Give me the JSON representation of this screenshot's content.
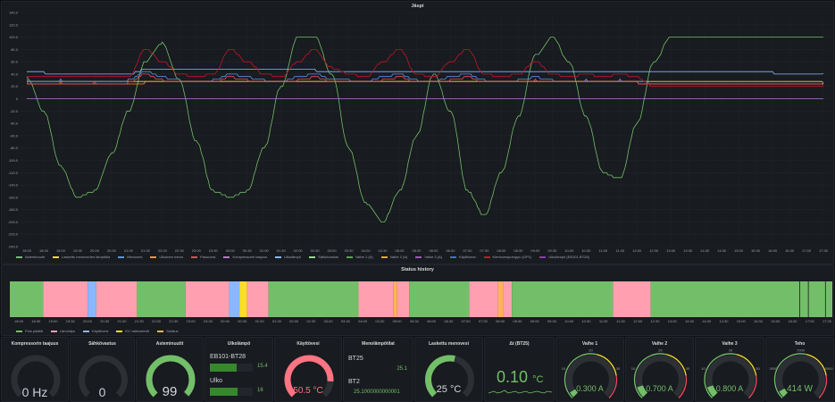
{
  "main_graph": {
    "title": "Jäspi",
    "y_ticks": [
      "140.0",
      "120.0",
      "100.0",
      "80.0",
      "60.0",
      "40.0",
      "20.0",
      "0",
      "-20.0",
      "-40.0",
      "-60.0",
      "-80.0",
      "-100.0",
      "-120.0",
      "-140.0",
      "-160.0",
      "-180.0",
      "-200.0",
      "-220.0",
      "-240.0"
    ],
    "x_ticks": [
      "18:00",
      "18:30",
      "19:00",
      "19:30",
      "20:00",
      "20:30",
      "21:00",
      "21:30",
      "22:00",
      "22:30",
      "23:00",
      "23:30",
      "00:00",
      "00:30",
      "01:00",
      "01:30",
      "02:00",
      "02:30",
      "03:00",
      "03:30",
      "04:00",
      "04:30",
      "05:00",
      "05:30",
      "06:00",
      "06:30",
      "07:00",
      "07:30",
      "08:00",
      "08:30",
      "09:00",
      "09:30",
      "10:00",
      "10:30",
      "11:00",
      "11:30",
      "12:00",
      "12:30",
      "13:00",
      "13:30",
      "14:00",
      "14:30",
      "15:00",
      "15:30",
      "16:00",
      "16:30",
      "17:00",
      "17:30"
    ],
    "legend": [
      {
        "name": "Asteminuutit",
        "color": "#73bf69"
      },
      {
        "name": "Laskettu menoveden lämpötila",
        "color": "#fade2a"
      },
      {
        "name": "Menovesi",
        "color": "#5794f2"
      },
      {
        "name": "Ulkoinen meno",
        "color": "#ff9830"
      },
      {
        "name": "Paluuvesi",
        "color": "#f2495c"
      },
      {
        "name": "Kompressorin taajuus",
        "color": "#b877d9"
      },
      {
        "name": "Ulkolämpö",
        "color": "#8ab8ff"
      },
      {
        "name": "Sähkövastus",
        "color": "#96d98d"
      },
      {
        "name": "Vaihe 1 (A)",
        "color": "#56a64b"
      },
      {
        "name": "Vaihe 2 (A)",
        "color": "#e0b400"
      },
      {
        "name": "Vaihe 3 (A)",
        "color": "#a352cc"
      },
      {
        "name": "Käyttövesi",
        "color": "#3274d9"
      },
      {
        "name": "Kiertovesipumppu (GP1)",
        "color": "#c4162a"
      },
      {
        "name": "Ulkolämpö (EB101-BT28)",
        "color": "#8f3bb8"
      }
    ]
  },
  "chart_data": [
    {
      "type": "line",
      "title": "Jäspi",
      "x": [
        "18:00",
        "18:30",
        "19:00",
        "19:30",
        "20:00",
        "20:30",
        "21:00",
        "21:30",
        "22:00",
        "22:30",
        "23:00",
        "23:30",
        "00:00",
        "00:30",
        "01:00",
        "01:30",
        "02:00",
        "02:30",
        "03:00",
        "03:30",
        "04:00",
        "04:30",
        "05:00",
        "05:30",
        "06:00",
        "06:30",
        "07:00",
        "07:30",
        "08:00",
        "08:30",
        "09:00",
        "09:30",
        "10:00",
        "10:30",
        "11:00",
        "11:30",
        "12:00",
        "12:30",
        "13:00",
        "13:30",
        "14:00",
        "14:30",
        "15:00",
        "15:30",
        "16:00",
        "16:30",
        "17:00",
        "17:30"
      ],
      "ylim": [
        -240,
        140
      ],
      "series": [
        {
          "name": "Asteminuutit",
          "values": [
            35,
            -20,
            -110,
            -160,
            -150,
            -90,
            -20,
            60,
            90,
            30,
            -70,
            -150,
            -160,
            -150,
            -80,
            20,
            100,
            100,
            40,
            -80,
            -170,
            -200,
            -150,
            -60,
            40,
            -20,
            -150,
            -190,
            -120,
            -30,
            70,
            100,
            60,
            -30,
            -120,
            -130,
            -40,
            60,
            100,
            100,
            100,
            100,
            100,
            100,
            100,
            100,
            100,
            100
          ]
        },
        {
          "name": "Laskettu menoveden lämpötila",
          "values": [
            28,
            28,
            28,
            28,
            28,
            28,
            28,
            28,
            28,
            28,
            28,
            28,
            28,
            28,
            28,
            28,
            28,
            27,
            27,
            27,
            27,
            27,
            27,
            27,
            27,
            27,
            27,
            27,
            27,
            27,
            27,
            26,
            26,
            26,
            26,
            26,
            26,
            26,
            26,
            26,
            26,
            26,
            26,
            26,
            26,
            26,
            26,
            26
          ]
        },
        {
          "name": "Menovesi",
          "values": [
            30,
            28,
            30,
            28,
            29,
            28,
            30,
            45,
            35,
            30,
            28,
            30,
            40,
            35,
            30,
            28,
            35,
            40,
            32,
            30,
            28,
            35,
            40,
            30,
            28,
            35,
            40,
            30,
            28,
            30,
            35,
            30,
            28,
            30,
            28,
            30,
            28,
            25,
            24,
            24,
            24,
            24,
            23,
            23,
            23,
            23,
            23,
            23
          ]
        },
        {
          "name": "Ulkoinen meno",
          "values": [
            25,
            25,
            25,
            25,
            25,
            25,
            25,
            26,
            26,
            26,
            26,
            26,
            26,
            26,
            26,
            26,
            26,
            26,
            26,
            26,
            26,
            26,
            26,
            26,
            26,
            26,
            26,
            26,
            26,
            26,
            26,
            26,
            26,
            26,
            26,
            26,
            26,
            25,
            25,
            25,
            25,
            25,
            25,
            25,
            25,
            25,
            25,
            25
          ]
        },
        {
          "name": "Paluuvesi",
          "values": [
            26,
            25,
            26,
            25,
            26,
            25,
            26,
            40,
            30,
            27,
            26,
            27,
            35,
            30,
            27,
            26,
            30,
            35,
            28,
            27,
            26,
            30,
            35,
            27,
            26,
            30,
            35,
            27,
            26,
            27,
            30,
            27,
            26,
            27,
            26,
            27,
            26,
            24,
            23,
            23,
            23,
            23,
            23,
            23,
            23,
            23,
            23,
            23
          ]
        },
        {
          "name": "Kompressorin taajuus",
          "values": [
            0,
            0,
            0,
            0,
            0,
            0,
            0,
            0,
            0,
            0,
            0,
            0,
            0,
            0,
            0,
            0,
            0,
            0,
            0,
            0,
            0,
            0,
            0,
            0,
            0,
            0,
            0,
            0,
            0,
            0,
            0,
            0,
            0,
            0,
            0,
            0,
            0,
            0,
            0,
            0,
            0,
            0,
            0,
            0,
            0,
            0,
            0,
            0
          ]
        },
        {
          "name": "Ulkolämpö",
          "values": [
            42,
            42,
            41,
            41,
            40,
            40,
            40,
            47,
            47,
            47,
            46,
            46,
            46,
            46,
            46,
            46,
            46,
            46,
            45,
            45,
            45,
            45,
            45,
            45,
            45,
            45,
            45,
            45,
            45,
            45,
            45,
            45,
            45,
            45,
            45,
            45,
            45,
            44,
            44,
            43,
            43,
            42,
            42,
            42,
            42,
            41,
            41,
            41
          ]
        },
        {
          "name": "Kiertovesipumppu (GP1)",
          "values": [
            35,
            35,
            35,
            35,
            35,
            35,
            35,
            80,
            60,
            40,
            35,
            40,
            80,
            60,
            40,
            35,
            60,
            80,
            50,
            40,
            35,
            60,
            80,
            40,
            35,
            60,
            80,
            40,
            35,
            40,
            60,
            40,
            35,
            40,
            35,
            40,
            35,
            20,
            20,
            20,
            20,
            20,
            20,
            20,
            20,
            20,
            20,
            20
          ]
        }
      ]
    },
    {
      "type": "table",
      "title": "Status history",
      "x": [
        "18:00",
        "18:30",
        "19:00",
        "19:30",
        "20:00",
        "20:30",
        "21:00",
        "21:30",
        "22:00",
        "22:30",
        "23:00",
        "23:30",
        "00:00",
        "00:30",
        "01:00",
        "01:30",
        "02:00",
        "02:30",
        "03:00",
        "03:30",
        "04:00",
        "04:30",
        "05:00",
        "05:30",
        "06:00",
        "06:30",
        "07:00",
        "07:30",
        "08:00",
        "08:30",
        "09:00",
        "09:30",
        "10:00",
        "10:30",
        "11:00",
        "11:30",
        "12:00",
        "12:30",
        "13:00",
        "13:30",
        "14:00",
        "14:30",
        "15:00",
        "15:30",
        "16:00",
        "16:30",
        "17:00",
        "17:30"
      ]
    }
  ],
  "status_history": {
    "title": "Status history",
    "segments": [
      {
        "start": 0,
        "end": 1.95,
        "color": "#73bf69"
      },
      {
        "start": 1.95,
        "end": 4.55,
        "color": "#ff9fb0"
      },
      {
        "start": 4.55,
        "end": 5.05,
        "color": "#8ab8ff"
      },
      {
        "start": 5.05,
        "end": 7.4,
        "color": "#ff9fb0"
      },
      {
        "start": 7.4,
        "end": 10.25,
        "color": "#73bf69"
      },
      {
        "start": 10.25,
        "end": 12.8,
        "color": "#ff9fb0"
      },
      {
        "start": 12.8,
        "end": 13.4,
        "color": "#8ab8ff"
      },
      {
        "start": 13.4,
        "end": 13.85,
        "color": "#fade2a"
      },
      {
        "start": 13.85,
        "end": 15.1,
        "color": "#ff9fb0"
      },
      {
        "start": 15.1,
        "end": 20.35,
        "color": "#73bf69"
      },
      {
        "start": 20.35,
        "end": 22.4,
        "color": "#ff9fb0"
      },
      {
        "start": 22.4,
        "end": 22.6,
        "color": "#ffb357"
      },
      {
        "start": 22.6,
        "end": 23.3,
        "color": "#ff9fb0"
      },
      {
        "start": 23.3,
        "end": 26.8,
        "color": "#73bf69"
      },
      {
        "start": 26.8,
        "end": 28.5,
        "color": "#ff9fb0"
      },
      {
        "start": 28.5,
        "end": 28.8,
        "color": "#ffb357"
      },
      {
        "start": 28.8,
        "end": 29.3,
        "color": "#ff9fb0"
      },
      {
        "start": 29.3,
        "end": 35.2,
        "color": "#73bf69"
      },
      {
        "start": 35.2,
        "end": 37.4,
        "color": "#ff9fb0"
      },
      {
        "start": 37.4,
        "end": 48,
        "color": "#73bf69"
      }
    ],
    "legend": [
      {
        "name": "Pois päältä",
        "color": "#73bf69"
      },
      {
        "name": "Lämmitys",
        "color": "#ff9fb0"
      },
      {
        "name": "Käyttövesi",
        "color": "#8ab8ff"
      },
      {
        "name": "KV vaihtokiertö",
        "color": "#fade2a"
      },
      {
        "name": "Sulatus",
        "color": "#ffb357"
      }
    ]
  },
  "stats": {
    "compressor": {
      "title": "Kompressorin taajuus",
      "value": "0 Hz",
      "gauge_fraction": 0,
      "color": "#ccccdc"
    },
    "heater": {
      "title": "Sähkövastus",
      "value": "0",
      "gauge_fraction": 0,
      "color": "#ccccdc"
    },
    "degree_minutes": {
      "title": "Asteminuutit",
      "value": "99",
      "gauge_fraction": 0.99,
      "color": "#73bf69"
    },
    "outdoor": {
      "title": "Ulkolämpö",
      "rows": [
        {
          "label": "EB101-BT28",
          "value": "15.4",
          "fraction": 0.62
        },
        {
          "label": "Ulko",
          "value": "16",
          "fraction": 0.64
        }
      ]
    },
    "hot_water": {
      "title": "Käyttövesi",
      "value": "50.5 °C",
      "gauge_fraction": 0.85,
      "color": "#ff7383"
    },
    "flow_temp": {
      "title": "Menolämpötilat",
      "rows": [
        {
          "label": "BT25",
          "value": "25.1"
        },
        {
          "label": "BT2",
          "value": "25.1000000000001"
        }
      ]
    },
    "calc_flow": {
      "title": "Laskettu menovesi",
      "value": "25 °C",
      "gauge_fraction": 0.55
    },
    "delta": {
      "title": "Δt (BT25)",
      "value": "0.10",
      "unit": "°C"
    },
    "phase1": {
      "title": "Vaihe 1",
      "value": "0.300 A",
      "gauge_fraction": 0.05,
      "ticks": [
        "10",
        "20",
        "30"
      ]
    },
    "phase2": {
      "title": "Vaihe 2",
      "value": "0.700 A",
      "gauge_fraction": 0.1,
      "ticks": [
        "10",
        "20",
        "30"
      ]
    },
    "phase3": {
      "title": "Vaihe 3",
      "value": "0.800 A",
      "gauge_fraction": 0.1,
      "ticks": [
        "10",
        "20",
        "30"
      ]
    },
    "power": {
      "title": "Teho",
      "value": "414 W",
      "gauge_fraction": 0.06,
      "ticks": [
        "3000",
        "7000",
        "10000"
      ]
    }
  }
}
